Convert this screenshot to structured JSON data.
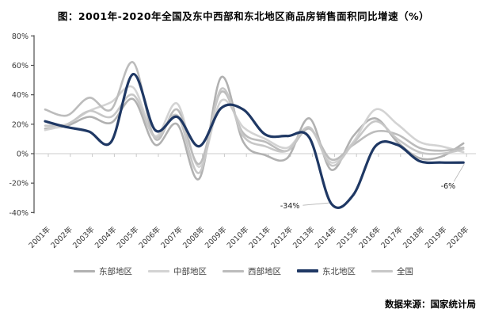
{
  "title": "图：2001年-2020年全国及东中西部和东北地区商品房销售面积同比增速（%）",
  "source_note": "数据来源：国家统计局",
  "accent_color": "#1f3864",
  "chart_data": {
    "type": "line",
    "line_style": "smooth",
    "grid": "zero-baseline-only",
    "legend_position": "bottom",
    "ylim": [
      -40,
      80
    ],
    "yticks": [
      80,
      60,
      40,
      20,
      0,
      -20,
      -40
    ],
    "ytick_suffix": "%",
    "categories": [
      "2001年",
      "2002年",
      "2003年",
      "2004年",
      "2005年",
      "2006年",
      "2007年",
      "2008年",
      "2009年",
      "2010年",
      "2011年",
      "2012年",
      "2013年",
      "2014年",
      "2015年",
      "2016年",
      "2017年",
      "2018年",
      "2019年",
      "2020年"
    ],
    "series": [
      {
        "key": "eastern",
        "name": "东部地区",
        "color": "#b1b1b1",
        "emphasis": false,
        "values": [
          17,
          19,
          25,
          21,
          37,
          6,
          20,
          -17,
          52,
          8,
          -1,
          -3,
          24,
          -11,
          12,
          24,
          8,
          -3,
          -2,
          7
        ]
      },
      {
        "key": "central",
        "name": "中部地区",
        "color": "#d3d3d3",
        "emphasis": false,
        "values": [
          16,
          20,
          29,
          35,
          45,
          12,
          34,
          -9,
          36,
          18,
          10,
          4,
          17,
          -6,
          8,
          30,
          20,
          8,
          5,
          1
        ]
      },
      {
        "key": "western",
        "name": "西部地区",
        "color": "#bcbcbc",
        "emphasis": false,
        "values": [
          30,
          26,
          38,
          30,
          62,
          10,
          30,
          -7,
          42,
          14,
          8,
          2,
          17,
          -4,
          6,
          15,
          13,
          4,
          2,
          4
        ]
      },
      {
        "key": "northeast",
        "name": "东北地区",
        "color": "#1f3864",
        "emphasis": true,
        "values": [
          22,
          18,
          15,
          8,
          54,
          16,
          25,
          5,
          31,
          30,
          13,
          12,
          11,
          -34,
          -28,
          5,
          6,
          -5,
          -6,
          -6
        ]
      },
      {
        "key": "national",
        "name": "全国",
        "color": "#c7c7c7",
        "emphasis": false,
        "values": [
          19,
          20,
          29,
          25,
          40,
          11,
          26,
          -13,
          44,
          12,
          5,
          2,
          18,
          -8,
          7,
          22,
          10,
          1,
          0,
          3
        ]
      }
    ],
    "annotations": [
      {
        "text": "-34%",
        "series": "northeast",
        "category": "2014年",
        "value": -34
      },
      {
        "text": "-6%",
        "series": "northeast",
        "category": "2020年",
        "value": -6
      }
    ]
  }
}
